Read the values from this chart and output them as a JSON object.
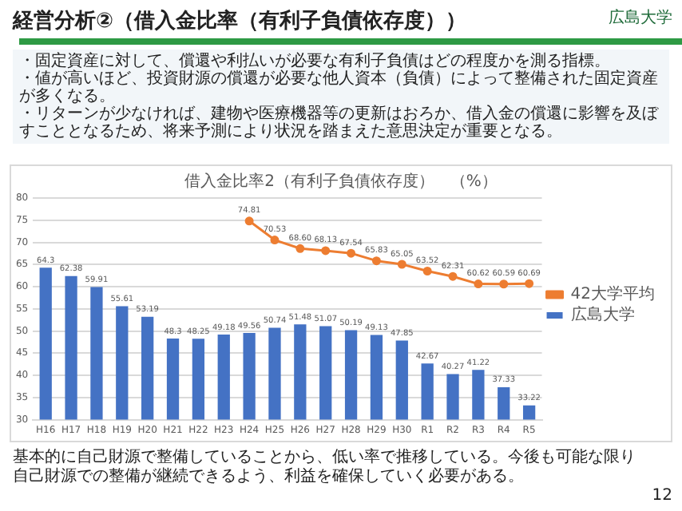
{
  "chart_data": {
    "type": "bar",
    "title": "借入金比率2（有利子負債依存度）　（%）",
    "categories": [
      "H16",
      "H17",
      "H18",
      "H19",
      "H20",
      "H21",
      "H22",
      "H23",
      "H24",
      "H25",
      "H26",
      "H27",
      "H28",
      "H29",
      "H30",
      "R1",
      "R2",
      "R3",
      "R4",
      "R5"
    ],
    "series": [
      {
        "name": "広島大学",
        "color": "#4472c4",
        "values": [
          64.3,
          62.38,
          59.91,
          55.61,
          53.19,
          48.3,
          48.25,
          49.18,
          49.56,
          50.74,
          51.48,
          51.07,
          50.19,
          49.13,
          47.85,
          42.67,
          40.27,
          41.22,
          37.33,
          33.22
        ],
        "value_labels": [
          "64.3",
          "62.38",
          "59.91",
          "55.61",
          "53.19",
          "48.3",
          "48.25",
          "49.18",
          "49.56",
          "50.74",
          "51.48",
          "51.07",
          "50.19",
          "49.13",
          "47.85",
          "42.67",
          "40.27",
          "41.22",
          "37.33",
          "33.22"
        ]
      },
      {
        "name": "42大学平均",
        "type": "line",
        "color": "#ed7d31",
        "values": [
          null,
          null,
          null,
          null,
          null,
          null,
          null,
          null,
          74.81,
          70.53,
          68.6,
          68.13,
          67.54,
          65.83,
          65.05,
          63.52,
          62.31,
          60.62,
          60.59,
          60.69
        ],
        "value_labels": [
          null,
          null,
          null,
          null,
          null,
          null,
          null,
          null,
          "74.81",
          "70.53",
          "68.60",
          "68.13",
          "67.54",
          "65.83",
          "65.05",
          "63.52",
          "62.31",
          "60.62",
          "60.59",
          "60.69"
        ]
      }
    ],
    "ylim": [
      30,
      80
    ],
    "yticks": [
      30,
      35,
      40,
      45,
      50,
      55,
      60,
      65,
      70,
      75,
      80
    ],
    "grid": "y",
    "legend": "right",
    "marker": "circle",
    "annotations": [
      "経営分析②（借入金比率（有利子負債依存度））",
      "広島大学",
      "・固定資産に対して、償還や利払いが必要な有利子負債はどの程度かを測る指標。",
      "・値が高いほど、投資財源の償還が必要な他人資本（負債）によって整備された固定資産が多くなる。",
      "・リターンが少なければ、建物や医療機器等の更新はおろか、借入金の償還に影響を及ぼすこととなるため、将来予測により状況を踏まえた意思決定が重要となる。",
      "基本的に自己財源で整備していることから、低い率で推移している。今後も可能な限り自己財源での整備が継続できるよう、利益を確保していく必要がある。",
      "12"
    ]
  }
}
